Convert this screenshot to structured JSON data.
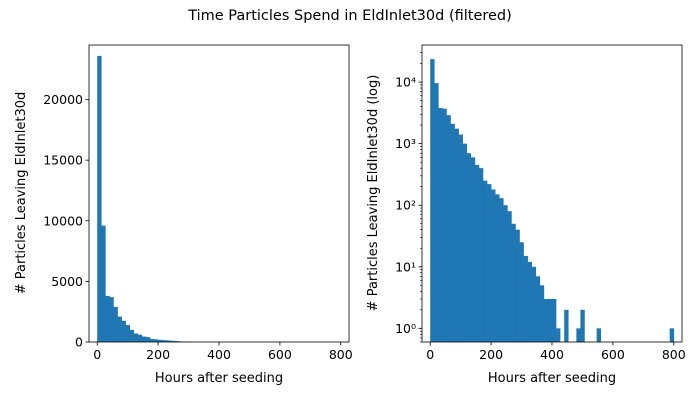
{
  "figure": {
    "suptitle": "Time Particles Spend in EldInlet30d (filtered)"
  },
  "chart_data": [
    {
      "type": "bar",
      "subtype": "histogram",
      "scale": "linear",
      "xlabel": "Hours after seeding",
      "ylabel": "# Particles Leaving EldInlet30d",
      "xlim": [
        -27,
        827
      ],
      "ylim": [
        0,
        24500
      ],
      "xticks": [
        0,
        200,
        400,
        600,
        800
      ],
      "yticks": [
        0,
        5000,
        10000,
        15000,
        20000
      ],
      "bin_width": 13.33,
      "bin_starts": [
        0,
        13.33,
        26.67,
        40,
        53.33,
        66.67,
        80,
        93.33,
        106.67,
        120,
        133.33,
        146.67,
        160,
        173.33,
        186.67,
        200,
        213.33,
        226.67,
        240,
        253.33,
        266.67,
        280,
        293.33,
        306.67
      ],
      "values": [
        23600,
        9600,
        3800,
        3700,
        2900,
        2100,
        1750,
        1400,
        1000,
        700,
        600,
        450,
        400,
        250,
        220,
        180,
        150,
        130,
        100,
        80,
        50,
        40,
        25,
        15
      ],
      "color": "#1f77b4",
      "grid": false
    },
    {
      "type": "bar",
      "subtype": "histogram",
      "scale": "log",
      "xlabel": "Hours after seeding",
      "ylabel": "# Particles Leaving EldInlet30d (log)",
      "xlim": [
        -27,
        827
      ],
      "ylim": [
        0.6,
        40000
      ],
      "xticks": [
        0,
        200,
        400,
        600,
        800
      ],
      "yticks": [
        1,
        10,
        100,
        1000,
        10000
      ],
      "ytick_labels": [
        "10⁰",
        "10¹",
        "10²",
        "10³",
        "10⁴"
      ],
      "bin_width": 13.33,
      "bin_starts": [
        0,
        13.33,
        26.67,
        40,
        53.33,
        66.67,
        80,
        93.33,
        106.67,
        120,
        133.33,
        146.67,
        160,
        173.33,
        186.67,
        200,
        213.33,
        226.67,
        240,
        253.33,
        266.67,
        280,
        293.33,
        306.67,
        320,
        333.33,
        346.67,
        360,
        373.33,
        386.67,
        400,
        413.33,
        440,
        480,
        493.33,
        546.67,
        786.67
      ],
      "values": [
        23600,
        9600,
        3800,
        3700,
        2900,
        2100,
        1750,
        1400,
        1000,
        700,
        600,
        450,
        400,
        250,
        220,
        180,
        150,
        130,
        100,
        80,
        50,
        40,
        25,
        15,
        12,
        10,
        7,
        5,
        3,
        3,
        3,
        1,
        2,
        1,
        2,
        1,
        1
      ],
      "color": "#1f77b4",
      "grid": false
    }
  ]
}
